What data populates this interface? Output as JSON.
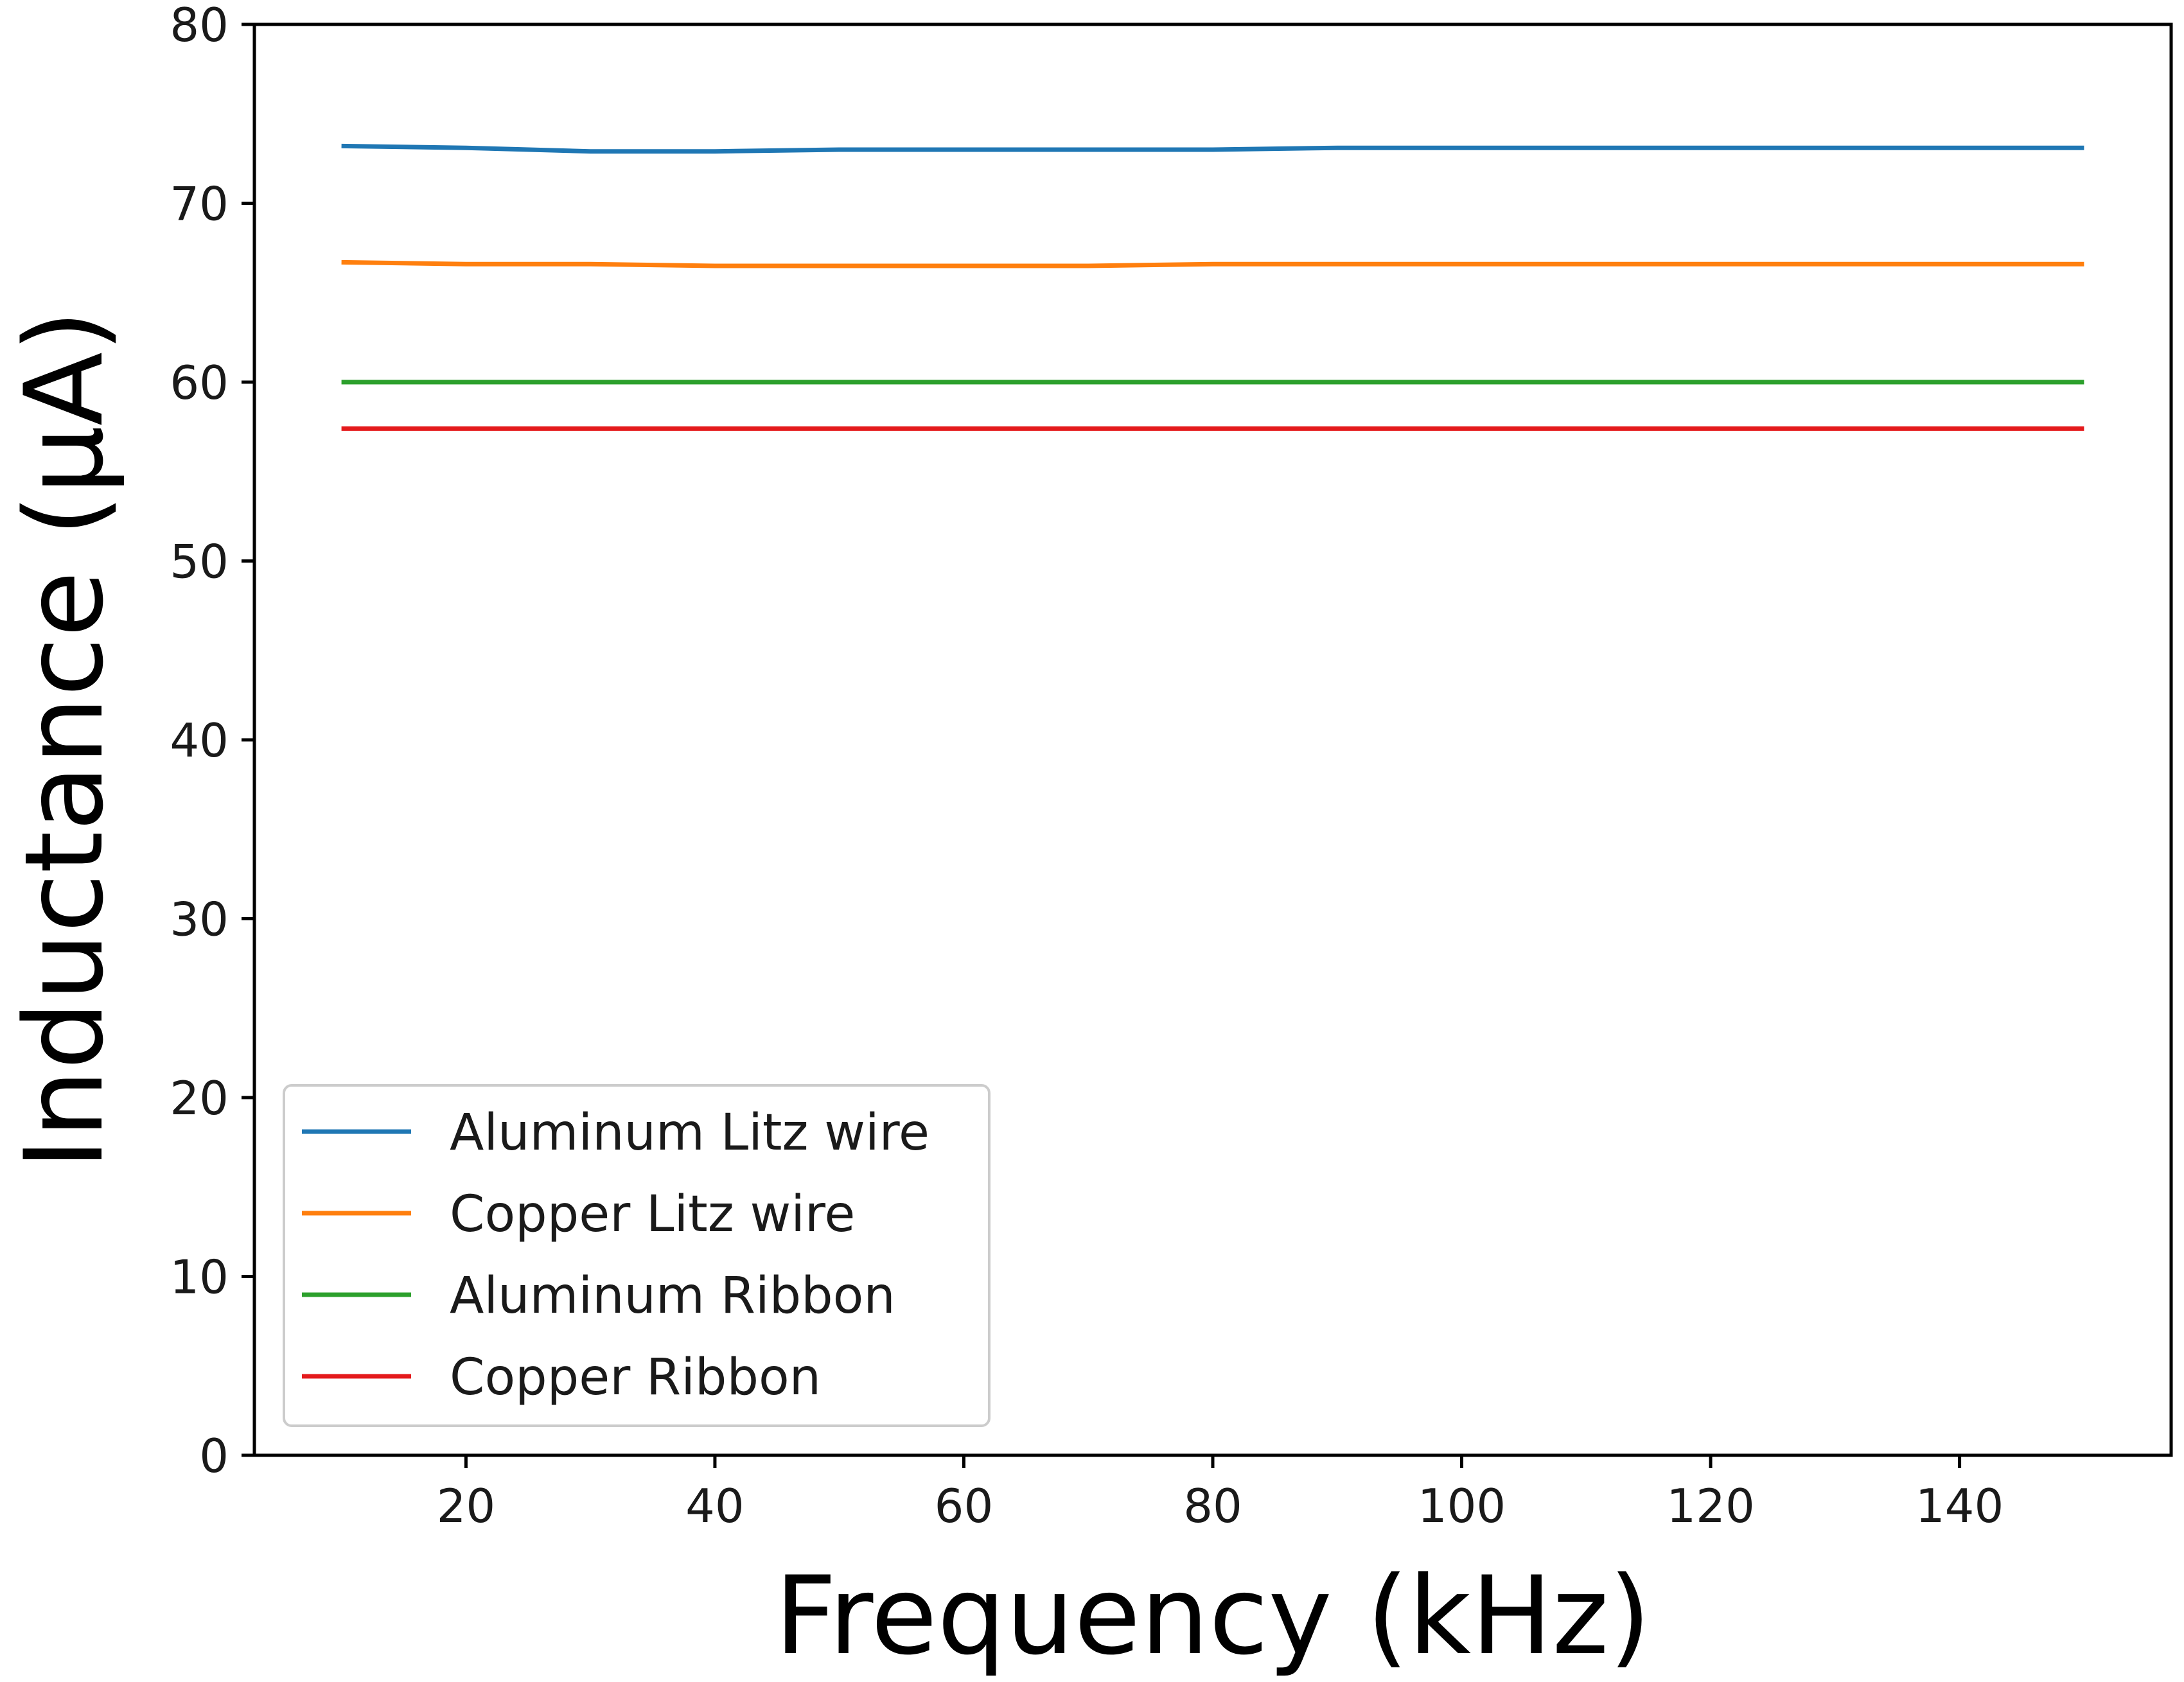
{
  "chart_data": {
    "type": "line",
    "title": "",
    "xlabel": "Frequency (kHz)",
    "ylabel": "Inductance (µA)",
    "xlim": [
      3,
      157
    ],
    "ylim": [
      0,
      80
    ],
    "xticks": [
      20,
      40,
      60,
      80,
      100,
      120,
      140
    ],
    "yticks": [
      0,
      10,
      20,
      30,
      40,
      50,
      60,
      70,
      80
    ],
    "grid": false,
    "legend_position": "lower-left",
    "series": [
      {
        "name": "Aluminum Litz wire",
        "color": "#1f77b4",
        "x": [
          10,
          20,
          30,
          40,
          50,
          60,
          70,
          80,
          90,
          100,
          110,
          120,
          130,
          140,
          150
        ],
        "values": [
          73.2,
          73.1,
          72.9,
          72.9,
          73.0,
          73.0,
          73.0,
          73.0,
          73.1,
          73.1,
          73.1,
          73.1,
          73.1,
          73.1,
          73.1
        ]
      },
      {
        "name": "Copper Litz wire",
        "color": "#ff7f0e",
        "x": [
          10,
          20,
          30,
          40,
          50,
          60,
          70,
          80,
          90,
          100,
          110,
          120,
          130,
          140,
          150
        ],
        "values": [
          66.7,
          66.6,
          66.6,
          66.5,
          66.5,
          66.5,
          66.5,
          66.6,
          66.6,
          66.6,
          66.6,
          66.6,
          66.6,
          66.6,
          66.6
        ]
      },
      {
        "name": "Aluminum Ribbon",
        "color": "#2ca02c",
        "x": [
          10,
          20,
          30,
          40,
          50,
          60,
          70,
          80,
          90,
          100,
          110,
          120,
          130,
          140,
          150
        ],
        "values": [
          60.0,
          60.0,
          60.0,
          60.0,
          60.0,
          60.0,
          60.0,
          60.0,
          60.0,
          60.0,
          60.0,
          60.0,
          60.0,
          60.0,
          60.0
        ]
      },
      {
        "name": "Copper Ribbon",
        "color": "#e41a1c",
        "x": [
          10,
          20,
          30,
          40,
          50,
          60,
          70,
          80,
          90,
          100,
          110,
          120,
          130,
          140,
          150
        ],
        "values": [
          57.4,
          57.4,
          57.4,
          57.4,
          57.4,
          57.4,
          57.4,
          57.4,
          57.4,
          57.4,
          57.4,
          57.4,
          57.4,
          57.4,
          57.4
        ]
      }
    ]
  }
}
